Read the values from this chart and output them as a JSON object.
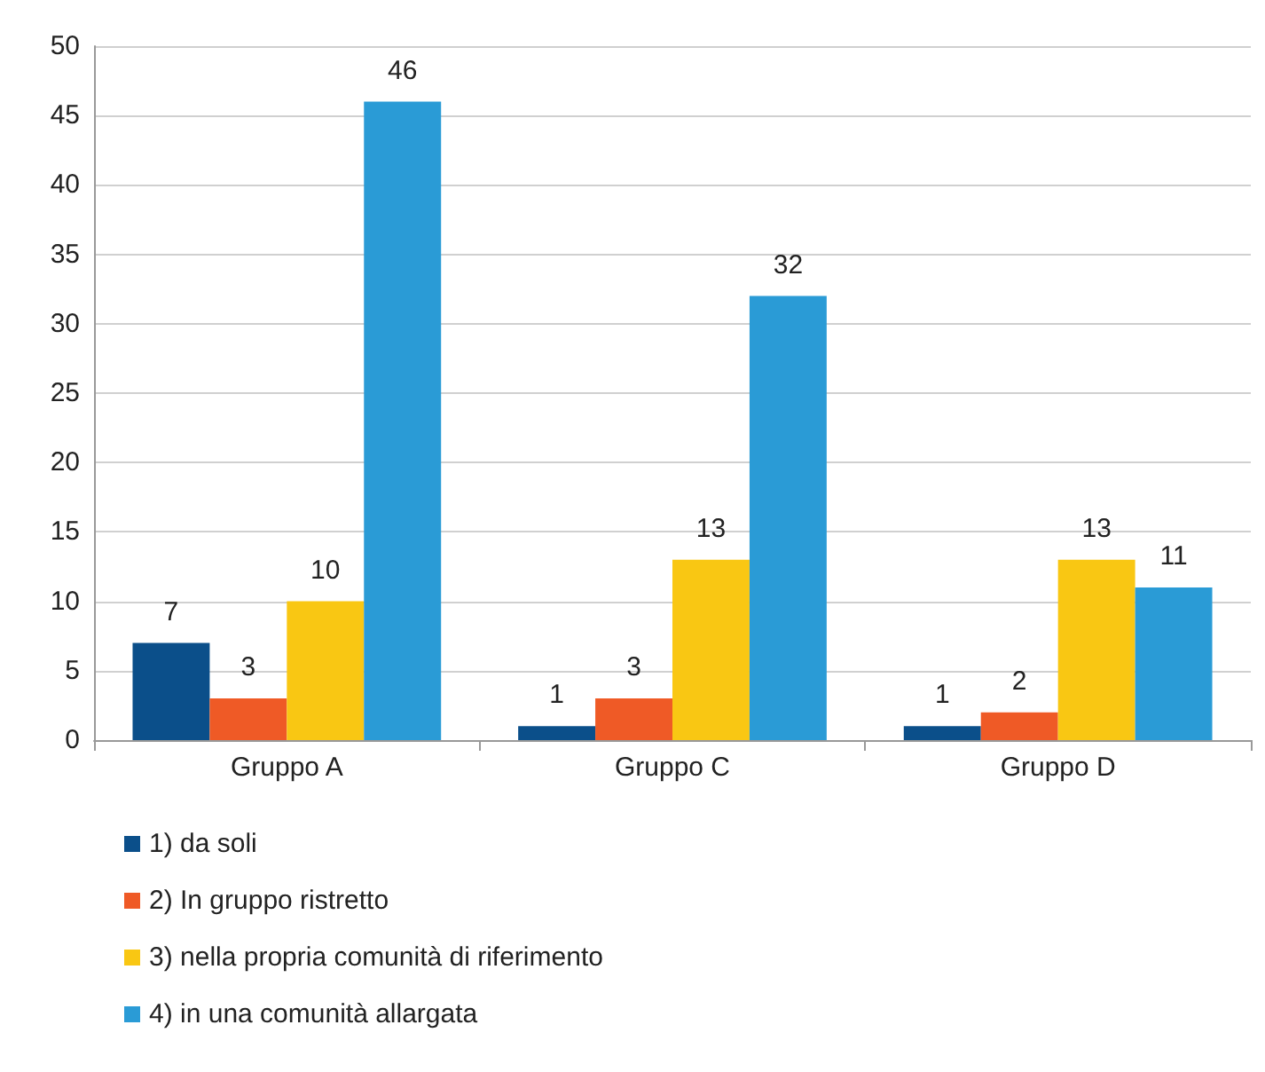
{
  "chart_data": {
    "type": "bar",
    "categories": [
      "Gruppo A",
      "Gruppo C",
      "Gruppo D"
    ],
    "series": [
      {
        "name": "1) da soli",
        "color": "#0b4f8a",
        "values": [
          7,
          1,
          1
        ]
      },
      {
        "name": "2) In gruppo ristretto",
        "color": "#ef5a26",
        "values": [
          3,
          3,
          2
        ]
      },
      {
        "name": "3) nella propria comunità di riferimento",
        "color": "#f9c713",
        "values": [
          10,
          13,
          13
        ]
      },
      {
        "name": "4) in una comunità allargata",
        "color": "#2a9bd6",
        "values": [
          46,
          32,
          11
        ]
      }
    ],
    "ylim": [
      0,
      50
    ],
    "yticks": [
      0,
      5,
      10,
      15,
      20,
      25,
      30,
      35,
      40,
      45,
      50
    ],
    "grid": "y",
    "legend": "bottom left",
    "data_labels": true
  }
}
